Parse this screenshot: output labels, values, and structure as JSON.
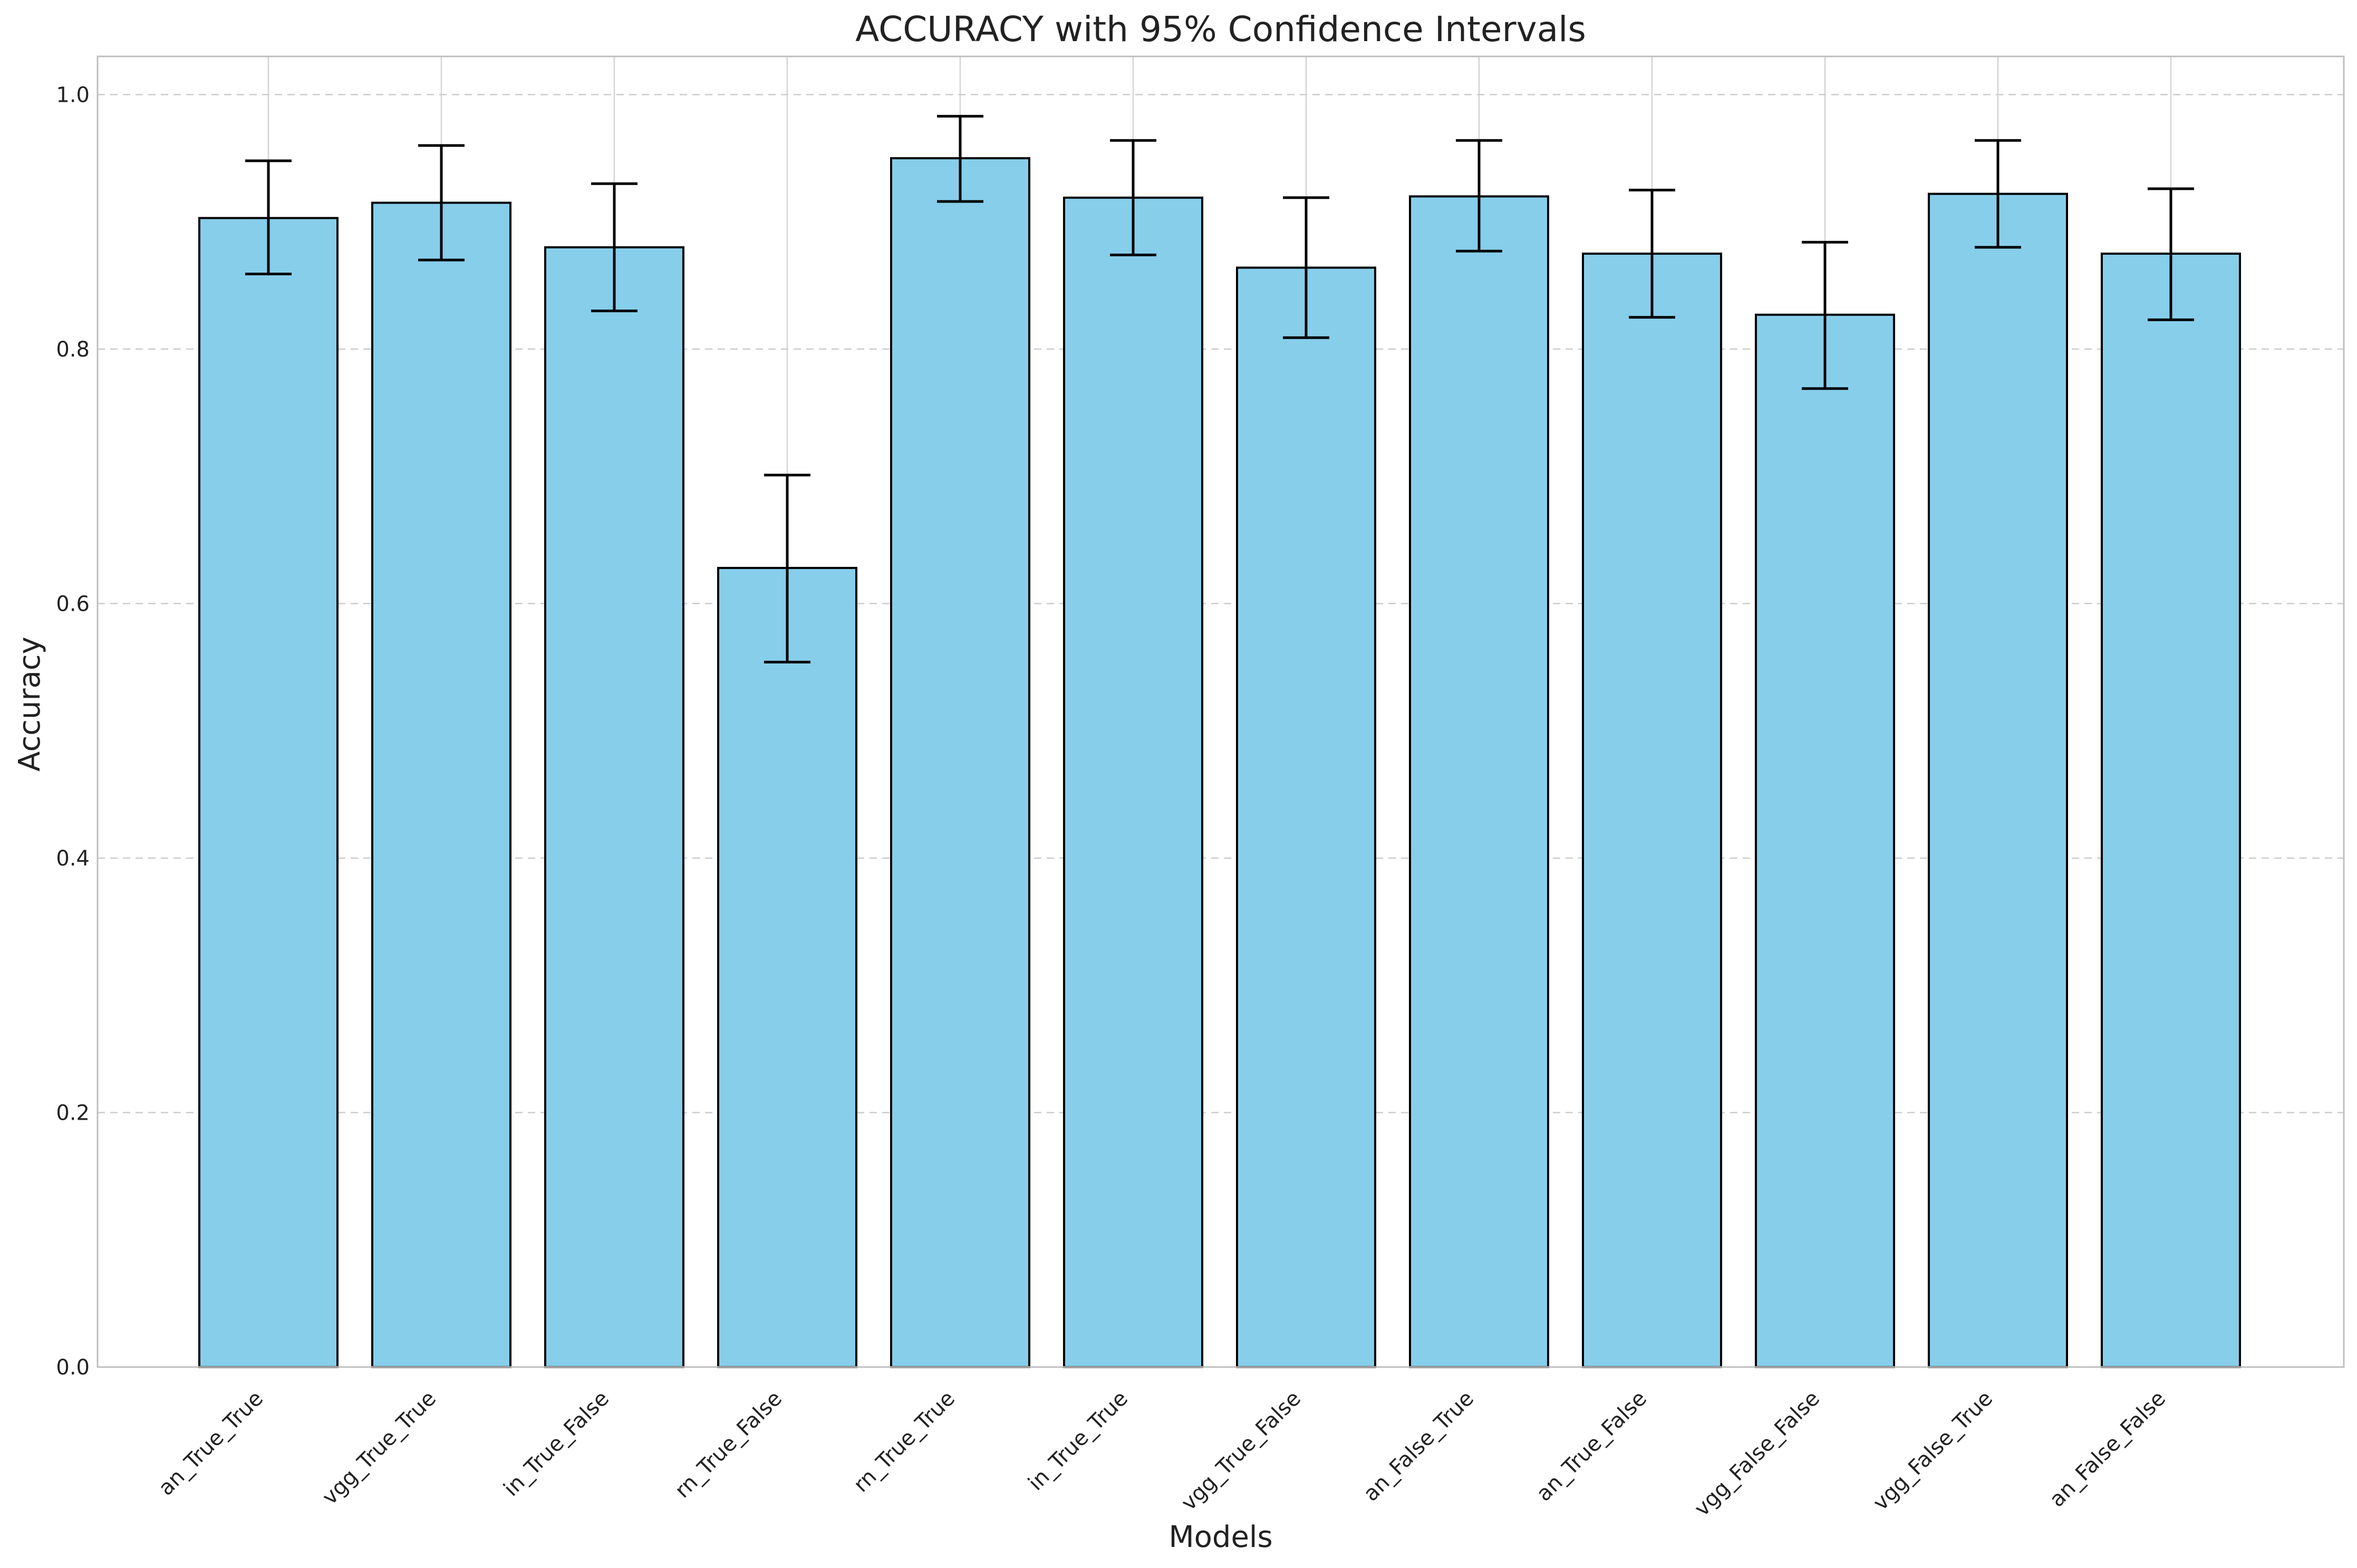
{
  "chart_data": {
    "type": "bar",
    "title": "ACCURACY with 95% Confidence Intervals",
    "xlabel": "Models",
    "ylabel": "Accuracy",
    "ylim": [
      0,
      1.03
    ],
    "yticks": [
      "0.0",
      "0.2",
      "0.4",
      "0.6",
      "0.8",
      "1.0"
    ],
    "ytick_values": [
      0,
      0.2,
      0.4,
      0.6,
      0.8,
      1.0
    ],
    "grid": true,
    "bar_color": "#87CEEB",
    "edge_color": "#000000",
    "categories": [
      "an_True_True",
      "vgg_True_True",
      "in_True_False",
      "rn_True_False",
      "rn_True_True",
      "in_True_True",
      "vgg_True_False",
      "an_False_True",
      "an_True_False",
      "vgg_False_False",
      "vgg_False_True",
      "an_False_False"
    ],
    "values": [
      0.903,
      0.915,
      0.88,
      0.628,
      0.95,
      0.919,
      0.864,
      0.92,
      0.875,
      0.827,
      0.922,
      0.875
    ],
    "ci_lower": [
      0.859,
      0.87,
      0.83,
      0.554,
      0.916,
      0.874,
      0.809,
      0.877,
      0.825,
      0.769,
      0.88,
      0.823
    ],
    "ci_upper": [
      0.948,
      0.96,
      0.93,
      0.701,
      0.983,
      0.964,
      0.919,
      0.964,
      0.925,
      0.884,
      0.964,
      0.926
    ]
  }
}
